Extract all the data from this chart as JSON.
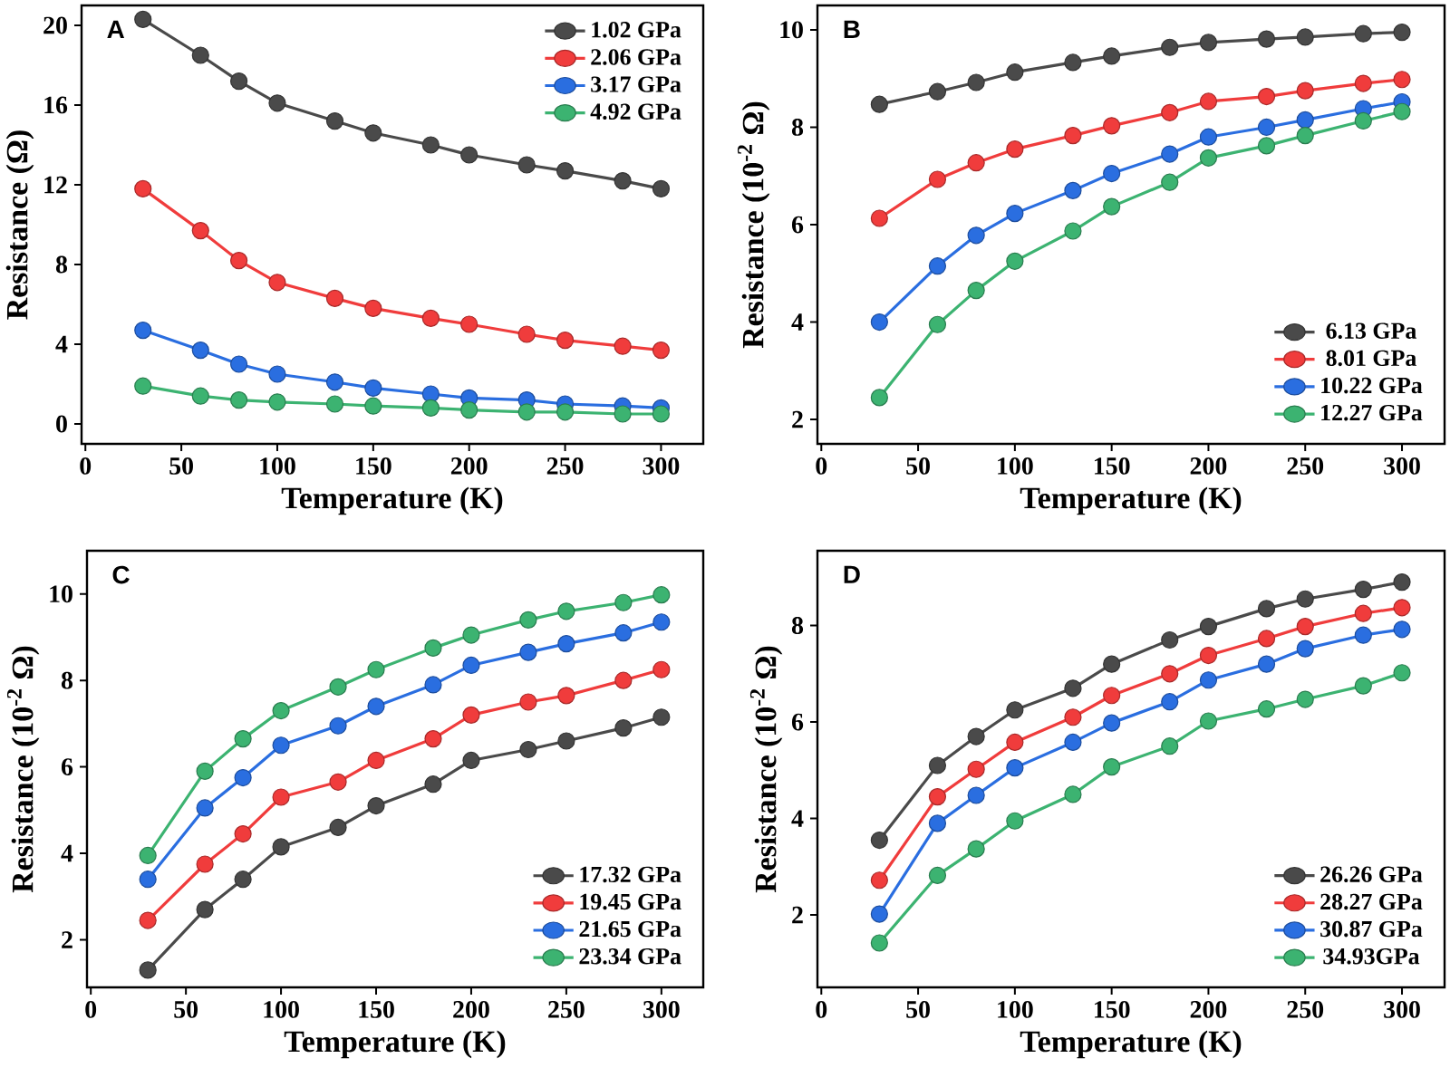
{
  "chart_data": [
    {
      "type": "line",
      "annotations": [
        "A"
      ],
      "xlabel": "Temperature (K)",
      "ylabel": "Resistance (Ω)",
      "x": [
        30,
        60,
        80,
        100,
        130,
        150,
        180,
        200,
        230,
        250,
        280,
        300
      ],
      "xlim": [
        -2,
        322
      ],
      "xticks": [
        0,
        50,
        100,
        150,
        200,
        250,
        300
      ],
      "ylim": [
        -1,
        21
      ],
      "yticks": [
        0,
        4,
        8,
        12,
        16,
        20
      ],
      "legend": "top right",
      "marker": "circle",
      "line_style": "solid",
      "series": [
        {
          "name": "1.02 GPa",
          "color": "#4a4a4a",
          "values": [
            20.3,
            18.5,
            17.2,
            16.1,
            15.2,
            14.6,
            14.0,
            13.5,
            13.0,
            12.7,
            12.2,
            11.8
          ]
        },
        {
          "name": "2.06 GPa",
          "color": "#f03c3c",
          "values": [
            11.8,
            9.7,
            8.2,
            7.1,
            6.3,
            5.8,
            5.3,
            5.0,
            4.5,
            4.2,
            3.9,
            3.7
          ]
        },
        {
          "name": "3.17 GPa",
          "color": "#2a6ee0",
          "values": [
            4.7,
            3.7,
            3.0,
            2.5,
            2.1,
            1.8,
            1.5,
            1.3,
            1.2,
            1.0,
            0.9,
            0.8
          ]
        },
        {
          "name": "4.92 GPa",
          "color": "#3cb371",
          "values": [
            1.9,
            1.4,
            1.2,
            1.1,
            1.0,
            0.9,
            0.8,
            0.7,
            0.6,
            0.6,
            0.5,
            0.5
          ]
        }
      ]
    },
    {
      "type": "line",
      "annotations": [
        "B"
      ],
      "xlabel": "Temperature (K)",
      "ylabel": "Resistance (10$^{-2}$ Ω)",
      "x": [
        30,
        60,
        80,
        100,
        130,
        150,
        180,
        200,
        230,
        250,
        280,
        300
      ],
      "xlim": [
        -2,
        322
      ],
      "xticks": [
        0,
        50,
        100,
        150,
        200,
        250,
        300
      ],
      "ylim": [
        1.5,
        10.5
      ],
      "yticks": [
        2,
        4,
        6,
        8,
        10
      ],
      "legend": "bottom right",
      "marker": "circle",
      "line_style": "solid",
      "series": [
        {
          "name": "6.13 GPa",
          "color": "#4a4a4a",
          "values": [
            8.47,
            8.73,
            8.92,
            9.13,
            9.33,
            9.46,
            9.64,
            9.74,
            9.81,
            9.85,
            9.92,
            9.95
          ]
        },
        {
          "name": "8.01 GPa",
          "color": "#f03c3c",
          "values": [
            6.13,
            6.93,
            7.27,
            7.55,
            7.83,
            8.03,
            8.3,
            8.53,
            8.63,
            8.75,
            8.9,
            8.98
          ]
        },
        {
          "name": "10.22 GPa",
          "color": "#2a6ee0",
          "values": [
            4.0,
            5.15,
            5.78,
            6.23,
            6.7,
            7.05,
            7.45,
            7.8,
            8.0,
            8.15,
            8.38,
            8.52
          ]
        },
        {
          "name": "12.27 GPa",
          "color": "#3cb371",
          "values": [
            2.45,
            3.95,
            4.65,
            5.25,
            5.87,
            6.37,
            6.87,
            7.37,
            7.62,
            7.83,
            8.13,
            8.32
          ]
        }
      ]
    },
    {
      "type": "line",
      "annotations": [
        "C"
      ],
      "xlabel": "Temperature (K)",
      "ylabel": "Resistance (10$^{-2}$ Ω)",
      "x": [
        30,
        60,
        80,
        100,
        130,
        150,
        180,
        200,
        230,
        250,
        280,
        300
      ],
      "xlim": [
        -2,
        322
      ],
      "xticks": [
        0,
        50,
        100,
        150,
        200,
        250,
        300
      ],
      "ylim": [
        0.9,
        11
      ],
      "yticks": [
        2,
        4,
        6,
        8,
        10
      ],
      "legend": "bottom right",
      "marker": "circle",
      "line_style": "solid",
      "series": [
        {
          "name": "17.32 GPa",
          "color": "#4a4a4a",
          "values": [
            1.3,
            2.7,
            3.4,
            4.15,
            4.6,
            5.1,
            5.6,
            6.15,
            6.4,
            6.6,
            6.9,
            7.15
          ]
        },
        {
          "name": "19.45 GPa",
          "color": "#f03c3c",
          "values": [
            2.45,
            3.75,
            4.45,
            5.3,
            5.65,
            6.15,
            6.65,
            7.2,
            7.5,
            7.65,
            8.0,
            8.25
          ]
        },
        {
          "name": "21.65 GPa",
          "color": "#2a6ee0",
          "values": [
            3.4,
            5.05,
            5.75,
            6.5,
            6.95,
            7.4,
            7.9,
            8.35,
            8.65,
            8.85,
            9.1,
            9.35
          ]
        },
        {
          "name": "23.34 GPa",
          "color": "#3cb371",
          "values": [
            3.95,
            5.9,
            6.65,
            7.3,
            7.85,
            8.25,
            8.75,
            9.05,
            9.4,
            9.6,
            9.8,
            9.98
          ]
        }
      ]
    },
    {
      "type": "line",
      "annotations": [
        "D"
      ],
      "xlabel": "Temperature (K)",
      "ylabel": "Resistance (10$^{-2}$ Ω)",
      "x": [
        30,
        60,
        80,
        100,
        130,
        150,
        180,
        200,
        230,
        250,
        280,
        300
      ],
      "xlim": [
        -2,
        322
      ],
      "xticks": [
        0,
        50,
        100,
        150,
        200,
        250,
        300
      ],
      "ylim": [
        0.5,
        9.55
      ],
      "yticks": [
        2,
        4,
        6,
        8
      ],
      "legend": "bottom right",
      "marker": "circle",
      "line_style": "solid",
      "series": [
        {
          "name": "26.26 GPa",
          "color": "#4a4a4a",
          "values": [
            3.55,
            5.1,
            5.7,
            6.25,
            6.7,
            7.2,
            7.7,
            7.98,
            8.35,
            8.55,
            8.75,
            8.9
          ]
        },
        {
          "name": "28.27 GPa",
          "color": "#f03c3c",
          "values": [
            2.72,
            4.45,
            5.02,
            5.58,
            6.1,
            6.55,
            7.0,
            7.38,
            7.73,
            7.98,
            8.25,
            8.37
          ]
        },
        {
          "name": "30.87 GPa",
          "color": "#2a6ee0",
          "values": [
            2.02,
            3.9,
            4.48,
            5.05,
            5.58,
            5.98,
            6.42,
            6.87,
            7.2,
            7.52,
            7.8,
            7.92
          ]
        },
        {
          "name": "34.93GPa",
          "color": "#3cb371",
          "values": [
            1.42,
            2.82,
            3.37,
            3.95,
            4.5,
            5.07,
            5.5,
            6.02,
            6.27,
            6.47,
            6.75,
            7.02
          ]
        }
      ]
    }
  ]
}
